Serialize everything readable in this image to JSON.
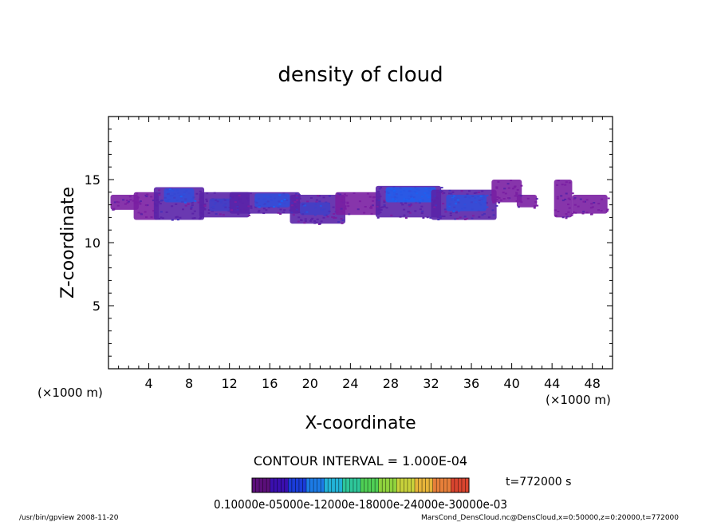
{
  "chart_data": {
    "type": "heatmap",
    "title": "density of cloud",
    "xlabel": "X-coordinate",
    "ylabel": "Z-coordinate",
    "x_unit_left": "(×1000 m)",
    "x_unit_right": "(×1000 m)",
    "xlim": [
      0,
      50
    ],
    "ylim": [
      0,
      20
    ],
    "x_ticks": [
      "4",
      "8",
      "12",
      "16",
      "20",
      "24",
      "28",
      "32",
      "36",
      "40",
      "44",
      "48"
    ],
    "y_ticks": [
      "5",
      "10",
      "15"
    ],
    "contour_interval": "CONTOUR INTERVAL = 1.000E-04",
    "time_label": "t=772000 s",
    "colorbar_labels": "0.10000e-05000e-12000e-18000e-24000e-30000e-03",
    "colorbar_colors": [
      "#5b0f7a",
      "#3a0fb0",
      "#1a3cd8",
      "#1c7be6",
      "#22b3d8",
      "#2ec79a",
      "#4fcf55",
      "#8fd33d",
      "#c8d23b",
      "#e6b53a",
      "#e8803a",
      "#d9452f"
    ],
    "footer_left": "/usr/bin/gpview   2008-11-20",
    "footer_right": "MarsCond_DensCloud.nc@DensCloud,x=0:50000,z=0:20000,t=772000",
    "cloud_regions": [
      {
        "x": [
          0.2,
          3.0
        ],
        "z": [
          12.6,
          13.8
        ],
        "level": 1
      },
      {
        "x": [
          2.5,
          5.0
        ],
        "z": [
          11.8,
          14.0
        ],
        "level": 1
      },
      {
        "x": [
          4.5,
          9.5
        ],
        "z": [
          11.8,
          14.4
        ],
        "level": 2
      },
      {
        "x": [
          5.5,
          8.5
        ],
        "z": [
          13.2,
          14.3
        ],
        "level": 5
      },
      {
        "x": [
          9.0,
          14.0
        ],
        "z": [
          12.0,
          14.0
        ],
        "level": 2
      },
      {
        "x": [
          10.0,
          13.0
        ],
        "z": [
          12.5,
          13.5
        ],
        "level": 4
      },
      {
        "x": [
          12.0,
          19.0
        ],
        "z": [
          12.3,
          14.0
        ],
        "level": 2
      },
      {
        "x": [
          14.5,
          18.0
        ],
        "z": [
          12.8,
          13.9
        ],
        "level": 5
      },
      {
        "x": [
          18.0,
          23.5
        ],
        "z": [
          11.5,
          13.8
        ],
        "level": 2
      },
      {
        "x": [
          19.0,
          22.0
        ],
        "z": [
          12.2,
          13.2
        ],
        "level": 4
      },
      {
        "x": [
          22.5,
          27.0
        ],
        "z": [
          12.2,
          14.0
        ],
        "level": 1
      },
      {
        "x": [
          26.5,
          33.0
        ],
        "z": [
          12.0,
          14.5
        ],
        "level": 2
      },
      {
        "x": [
          27.5,
          32.5
        ],
        "z": [
          13.2,
          14.4
        ],
        "level": 6
      },
      {
        "x": [
          32.0,
          38.5
        ],
        "z": [
          11.8,
          14.2
        ],
        "level": 2
      },
      {
        "x": [
          33.5,
          37.5
        ],
        "z": [
          12.5,
          13.8
        ],
        "level": 5
      },
      {
        "x": [
          38.0,
          41.0
        ],
        "z": [
          13.2,
          15.0
        ],
        "level": 1
      },
      {
        "x": [
          40.5,
          42.5
        ],
        "z": [
          12.8,
          13.8
        ],
        "level": 1
      },
      {
        "x": [
          44.2,
          46.0
        ],
        "z": [
          12.0,
          15.0
        ],
        "level": 1
      },
      {
        "x": [
          46.0,
          49.5
        ],
        "z": [
          12.3,
          13.8
        ],
        "level": 1
      }
    ]
  }
}
